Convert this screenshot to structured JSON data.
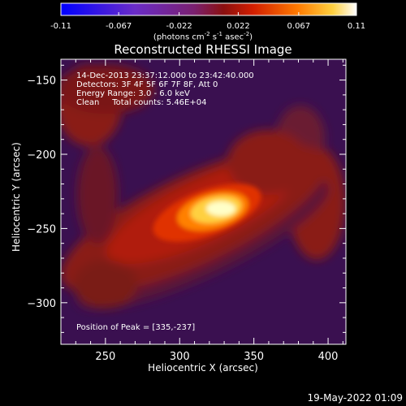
{
  "colorbar": {
    "ticks": [
      "-0.11",
      "-0.067",
      "-0.022",
      "0.022",
      "0.067",
      "0.11"
    ],
    "unit_label": "(photons cm",
    "unit_exp1": "-2",
    "unit_mid": " s",
    "unit_exp2": "-1",
    "unit_mid2": " asec",
    "unit_exp3": "-2",
    "unit_end": ")",
    "range": [
      -0.11,
      0.11
    ]
  },
  "chart_data": {
    "type": "heatmap",
    "title": "Reconstructed RHESSI Image",
    "xlabel": "Heliocentric X (arcsec)",
    "ylabel": "Heliocentric Y (arcsec)",
    "xlim": [
      220,
      412
    ],
    "ylim": [
      -328,
      -136
    ],
    "x_ticks": [
      250,
      300,
      350,
      400
    ],
    "y_ticks": [
      -150,
      -200,
      -250,
      -300
    ],
    "peak_position": [
      335,
      -237
    ],
    "peak_value": 0.11,
    "annotations": [
      "14-Dec-2013 23:37:12.000 to 23:42:40.000",
      "Detectors: 3F 4F 5F 6F 7F 8F, Att 0",
      "Energy Range: 3.0 - 6.0 keV",
      "Clean     Total counts: 5.46E+04",
      "Position of Peak = [335,-237]"
    ]
  },
  "footer": {
    "timestamp": "19-May-2022 01:09"
  }
}
